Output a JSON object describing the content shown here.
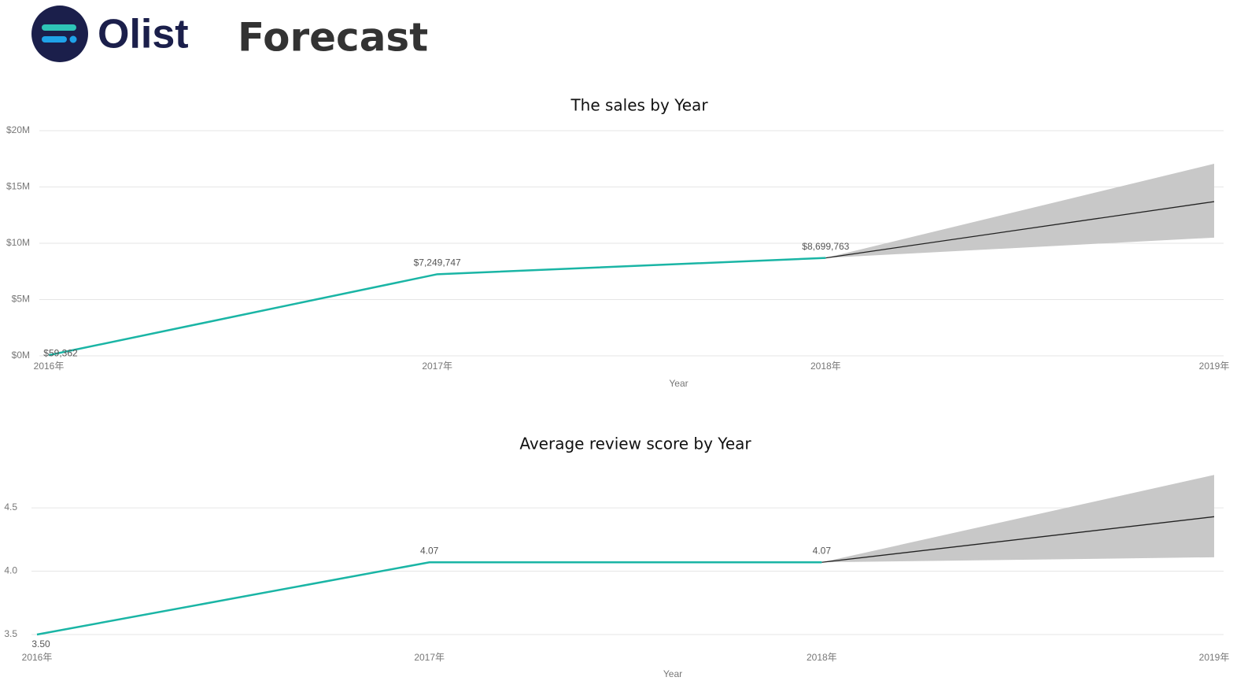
{
  "header": {
    "brand": "Olist",
    "title": "Forecast"
  },
  "chart_data": [
    {
      "type": "line",
      "title": "The sales by Year",
      "x_label": "Year",
      "categories": [
        "2016年",
        "2017年",
        "2018年",
        "2019年"
      ],
      "values": [
        59362,
        7249747,
        8699763,
        null
      ],
      "value_labels": [
        "$59,362",
        "$7,249,747",
        "$8,699,763",
        null
      ],
      "color": "#1ab5a5",
      "forecast": {
        "color": "#222222",
        "band_color": "#c8c8c8",
        "values": [
          null,
          null,
          8699763,
          13700000
        ],
        "upper": [
          null,
          null,
          8699763,
          17060000
        ],
        "lower": [
          null,
          null,
          8699763,
          10500000
        ]
      },
      "ylim": [
        0,
        20000000
      ],
      "yticks": [
        {
          "value": 0,
          "label": "$0M"
        },
        {
          "value": 5000000,
          "label": "$5M"
        },
        {
          "value": 10000000,
          "label": "$10M"
        },
        {
          "value": 15000000,
          "label": "$15M"
        },
        {
          "value": 20000000,
          "label": "$20M"
        }
      ],
      "grid": true
    },
    {
      "type": "line",
      "title": "Average review score by Year",
      "x_label": "Year",
      "categories": [
        "2016年",
        "2017年",
        "2018年",
        "2019年"
      ],
      "values": [
        3.5,
        4.07,
        4.07,
        null
      ],
      "value_labels": [
        "3.50",
        "4.07",
        "4.07",
        null
      ],
      "color": "#1ab5a5",
      "forecast": {
        "color": "#222222",
        "band_color": "#c8c8c8",
        "values": [
          null,
          null,
          4.07,
          4.43
        ],
        "upper": [
          null,
          null,
          4.07,
          4.76
        ],
        "lower": [
          null,
          null,
          4.07,
          4.11
        ]
      },
      "ylim": [
        3.5,
        4.78
      ],
      "yticks": [
        3.5,
        {
          "value": 4,
          "label": "4.0"
        },
        4.5
      ],
      "grid": true
    }
  ]
}
